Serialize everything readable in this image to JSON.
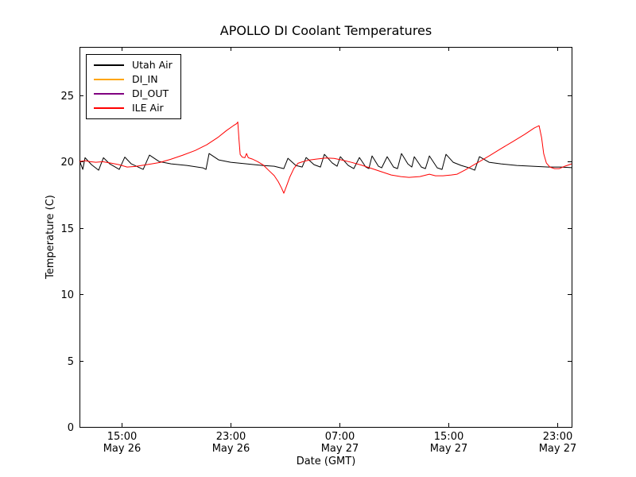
{
  "figure": {
    "background": "#ffffff"
  },
  "chart_data": {
    "type": "line",
    "title": "APOLLO DI Coolant Temperatures",
    "xlabel": "Date (GMT)",
    "ylabel": "Temperature (C)",
    "grid": false,
    "x_axis": {
      "unit": "hours since May 26 00:00 GMT",
      "lim": [
        11.9,
        48.05
      ],
      "ticks": [
        {
          "value": 15,
          "time": "15:00",
          "date": "May 26"
        },
        {
          "value": 23,
          "time": "23:00",
          "date": "May 26"
        },
        {
          "value": 31,
          "time": "07:00",
          "date": "May 27"
        },
        {
          "value": 39,
          "time": "15:00",
          "date": "May 27"
        },
        {
          "value": 47,
          "time": "23:00",
          "date": "May 27"
        }
      ]
    },
    "y_axis": {
      "lim": [
        0,
        28.66
      ],
      "ticks": [
        0,
        5,
        10,
        15,
        20,
        25
      ]
    },
    "legend": {
      "position": "upper left",
      "border_color": "#000000"
    },
    "series": [
      {
        "name": "Utah Air",
        "color": "#000000",
        "points": [
          [
            11.9,
            20.08
          ],
          [
            12.14,
            19.42
          ],
          [
            12.31,
            20.3
          ],
          [
            12.78,
            19.78
          ],
          [
            13.31,
            19.36
          ],
          [
            13.66,
            20.3
          ],
          [
            14.12,
            19.84
          ],
          [
            14.82,
            19.42
          ],
          [
            15.23,
            20.35
          ],
          [
            15.7,
            19.84
          ],
          [
            16.58,
            19.42
          ],
          [
            17.04,
            20.5
          ],
          [
            17.74,
            20.02
          ],
          [
            18.62,
            19.84
          ],
          [
            19.79,
            19.72
          ],
          [
            20.96,
            19.54
          ],
          [
            21.19,
            19.42
          ],
          [
            21.42,
            20.62
          ],
          [
            22.12,
            20.14
          ],
          [
            23.0,
            19.96
          ],
          [
            24.17,
            19.84
          ],
          [
            25.34,
            19.72
          ],
          [
            26.21,
            19.66
          ],
          [
            26.91,
            19.48
          ],
          [
            27.21,
            20.26
          ],
          [
            27.79,
            19.72
          ],
          [
            28.26,
            19.6
          ],
          [
            28.55,
            20.32
          ],
          [
            29.13,
            19.78
          ],
          [
            29.6,
            19.6
          ],
          [
            29.89,
            20.56
          ],
          [
            30.47,
            19.9
          ],
          [
            30.82,
            19.66
          ],
          [
            31.06,
            20.38
          ],
          [
            31.64,
            19.72
          ],
          [
            32.05,
            19.48
          ],
          [
            32.46,
            20.32
          ],
          [
            32.93,
            19.6
          ],
          [
            33.16,
            19.48
          ],
          [
            33.39,
            20.44
          ],
          [
            33.86,
            19.66
          ],
          [
            34.1,
            19.54
          ],
          [
            34.5,
            20.38
          ],
          [
            34.97,
            19.6
          ],
          [
            35.26,
            19.48
          ],
          [
            35.55,
            20.62
          ],
          [
            36.02,
            19.84
          ],
          [
            36.31,
            19.6
          ],
          [
            36.49,
            20.38
          ],
          [
            37.01,
            19.6
          ],
          [
            37.31,
            19.48
          ],
          [
            37.6,
            20.44
          ],
          [
            38.18,
            19.54
          ],
          [
            38.53,
            19.42
          ],
          [
            38.82,
            20.56
          ],
          [
            39.35,
            19.96
          ],
          [
            39.94,
            19.72
          ],
          [
            40.52,
            19.54
          ],
          [
            40.93,
            19.36
          ],
          [
            41.28,
            20.38
          ],
          [
            41.98,
            19.96
          ],
          [
            42.85,
            19.84
          ],
          [
            44.02,
            19.72
          ],
          [
            45.19,
            19.66
          ],
          [
            46.36,
            19.6
          ],
          [
            47.23,
            19.6
          ],
          [
            48.05,
            19.55
          ]
        ]
      },
      {
        "name": "DI_IN",
        "color": "#ffa500",
        "points": []
      },
      {
        "name": "DI_OUT",
        "color": "#800080",
        "points": []
      },
      {
        "name": "ILE Air",
        "color": "#ff0000",
        "points": [
          [
            11.9,
            20.02
          ],
          [
            12.3,
            20.08
          ],
          [
            12.7,
            20.0
          ],
          [
            13.1,
            19.96
          ],
          [
            13.6,
            20.0
          ],
          [
            14.2,
            19.9
          ],
          [
            14.8,
            19.78
          ],
          [
            15.4,
            19.6
          ],
          [
            16.0,
            19.64
          ],
          [
            16.6,
            19.74
          ],
          [
            17.2,
            19.84
          ],
          [
            17.8,
            19.94
          ],
          [
            18.6,
            20.18
          ],
          [
            19.5,
            20.5
          ],
          [
            20.4,
            20.85
          ],
          [
            21.25,
            21.28
          ],
          [
            22.1,
            21.86
          ],
          [
            22.7,
            22.35
          ],
          [
            23.2,
            22.72
          ],
          [
            23.45,
            22.88
          ],
          [
            23.53,
            23.0
          ],
          [
            23.62,
            21.6
          ],
          [
            23.7,
            20.55
          ],
          [
            23.85,
            20.35
          ],
          [
            24.05,
            20.3
          ],
          [
            24.17,
            20.62
          ],
          [
            24.3,
            20.3
          ],
          [
            24.6,
            20.2
          ],
          [
            25.0,
            20.0
          ],
          [
            25.4,
            19.75
          ],
          [
            25.8,
            19.35
          ],
          [
            26.2,
            18.95
          ],
          [
            26.5,
            18.5
          ],
          [
            26.75,
            18.0
          ],
          [
            26.91,
            17.62
          ],
          [
            27.1,
            18.15
          ],
          [
            27.35,
            18.85
          ],
          [
            27.65,
            19.5
          ],
          [
            27.95,
            19.88
          ],
          [
            28.3,
            20.0
          ],
          [
            28.75,
            20.12
          ],
          [
            29.3,
            20.2
          ],
          [
            30.0,
            20.28
          ],
          [
            30.6,
            20.25
          ],
          [
            31.2,
            20.12
          ],
          [
            31.9,
            19.95
          ],
          [
            32.6,
            19.75
          ],
          [
            33.4,
            19.48
          ],
          [
            34.1,
            19.24
          ],
          [
            34.8,
            19.0
          ],
          [
            35.5,
            18.88
          ],
          [
            36.1,
            18.82
          ],
          [
            36.9,
            18.88
          ],
          [
            37.6,
            19.06
          ],
          [
            38.05,
            18.94
          ],
          [
            38.6,
            18.94
          ],
          [
            39.2,
            19.0
          ],
          [
            39.64,
            19.06
          ],
          [
            40.2,
            19.36
          ],
          [
            41.1,
            19.9
          ],
          [
            42.0,
            20.44
          ],
          [
            42.85,
            20.98
          ],
          [
            43.7,
            21.5
          ],
          [
            44.6,
            22.06
          ],
          [
            45.3,
            22.54
          ],
          [
            45.66,
            22.72
          ],
          [
            45.85,
            21.8
          ],
          [
            46.0,
            20.6
          ],
          [
            46.2,
            19.9
          ],
          [
            46.45,
            19.6
          ],
          [
            46.8,
            19.48
          ],
          [
            47.15,
            19.48
          ],
          [
            47.55,
            19.66
          ],
          [
            48.05,
            19.84
          ]
        ]
      }
    ]
  }
}
